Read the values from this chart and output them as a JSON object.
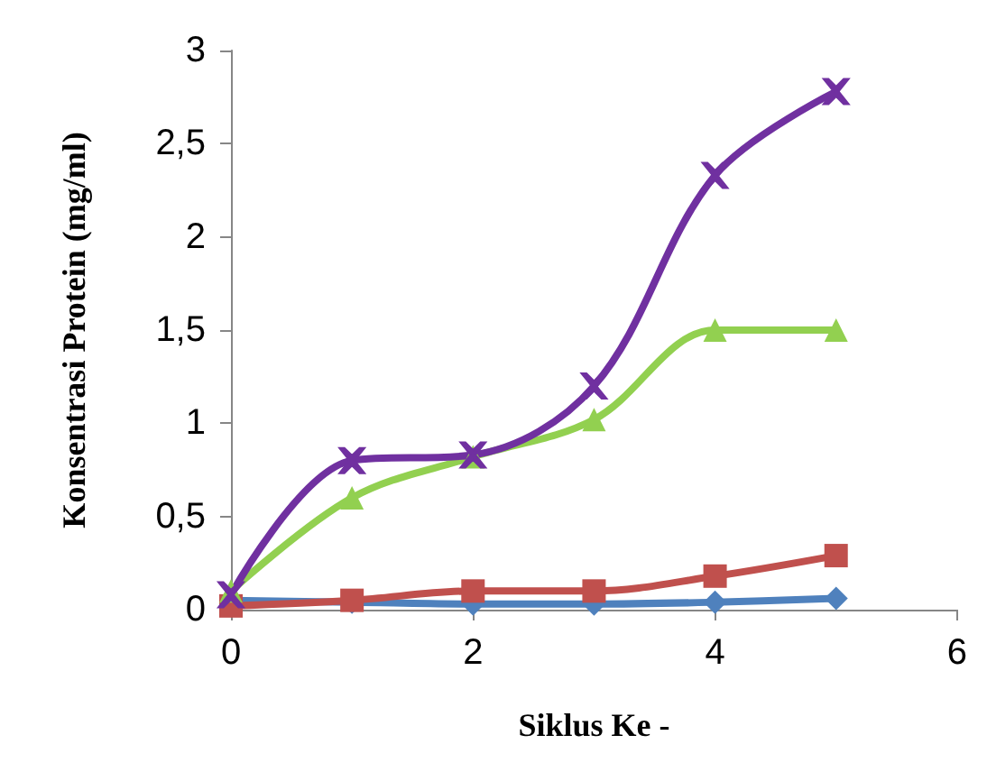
{
  "chart_data": {
    "type": "line",
    "xlabel": "Siklus Ke -",
    "ylabel": "Konsentrasi Protein (mg/ml)",
    "x": [
      0,
      1,
      2,
      3,
      4,
      5
    ],
    "series": [
      {
        "color": "#4f81bd",
        "marker": "diamond",
        "values": [
          0.05,
          0.04,
          0.03,
          0.03,
          0.04,
          0.06
        ]
      },
      {
        "color": "#c0504d",
        "marker": "square",
        "values": [
          0.02,
          0.05,
          0.1,
          0.1,
          0.18,
          0.29
        ]
      },
      {
        "color": "#92d050",
        "marker": "triangle",
        "values": [
          0.1,
          0.6,
          0.82,
          1.02,
          1.5,
          1.5
        ]
      },
      {
        "color": "#7030a0",
        "marker": "cross",
        "values": [
          0.08,
          0.8,
          0.83,
          1.2,
          2.33,
          2.78
        ]
      }
    ],
    "xlim": [
      0,
      6
    ],
    "xticks": [
      0,
      2,
      4,
      6
    ],
    "ylim": [
      0,
      3
    ],
    "yticks": [
      0,
      {
        "value": 0.5,
        "label": "0,5"
      },
      1,
      {
        "value": 1.5,
        "label": "1,5"
      },
      2,
      {
        "value": 2.5,
        "label": "2,5"
      },
      3
    ],
    "grid": false,
    "line_style": "solid"
  }
}
